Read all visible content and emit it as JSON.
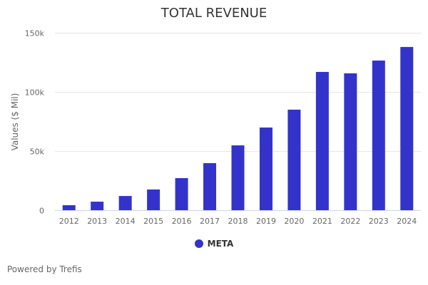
{
  "chart_data": {
    "type": "bar",
    "title": "TOTAL REVENUE",
    "xlabel": "",
    "ylabel": "Values ($ Mil)",
    "ylim": [
      0,
      150000
    ],
    "yticks": [
      0,
      50000,
      100000,
      150000
    ],
    "ytick_labels": [
      "0",
      "50k",
      "100k",
      "150k"
    ],
    "grid": true,
    "categories": [
      "2012",
      "2013",
      "2014",
      "2015",
      "2016",
      "2017",
      "2018",
      "2019",
      "2020",
      "2021",
      "2022",
      "2023",
      "2024"
    ],
    "series": [
      {
        "name": "META",
        "color": "#3333cc",
        "values": [
          4200,
          7200,
          12000,
          17500,
          27100,
          39800,
          54800,
          69900,
          85000,
          116900,
          115700,
          126500,
          138000
        ]
      }
    ],
    "legend": "bottom-center"
  },
  "footer": {
    "credit": "Powered by Trefis"
  }
}
